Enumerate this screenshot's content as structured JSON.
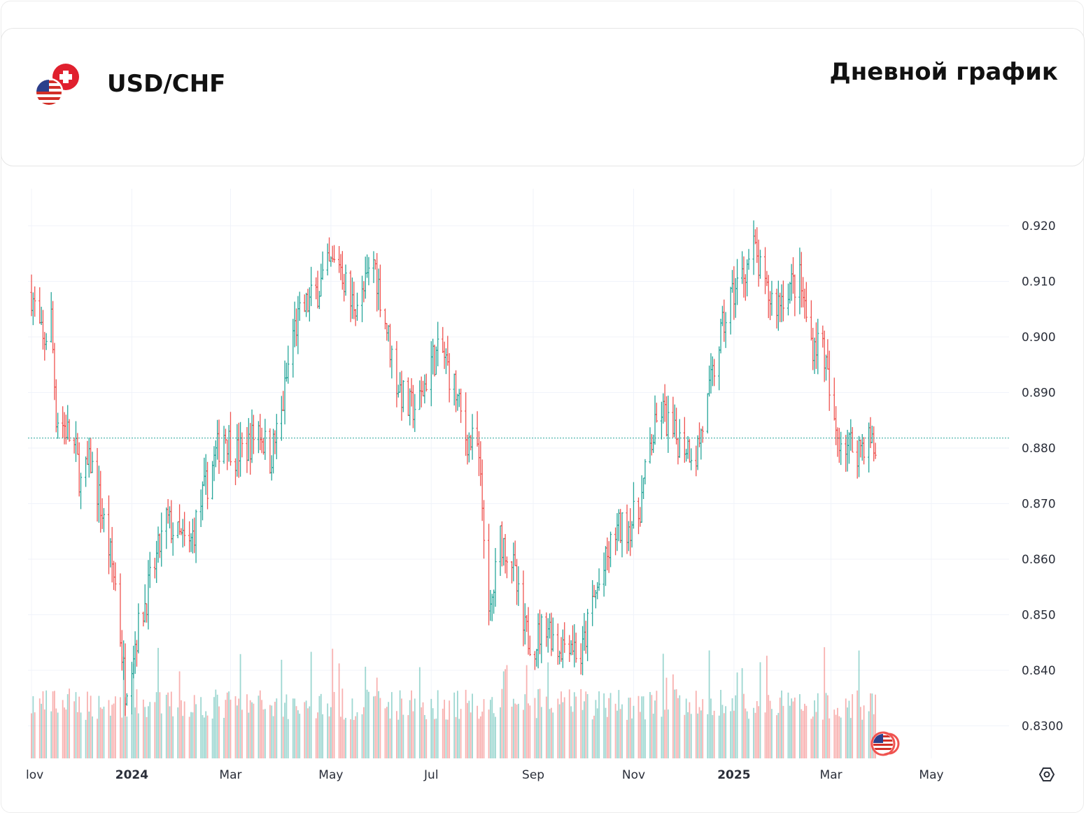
{
  "header": {
    "pair": "USD/CHF",
    "timeframe": "Дневной график"
  },
  "colors": {
    "up": "#26a69a",
    "down": "#ef5350",
    "grid": "#f0f3fa",
    "current_line": "#26a69a"
  },
  "icons": {
    "pair_flags": "usd-chf-flags-icon",
    "settings": "settings-icon",
    "event_marker": "us-flag-icon"
  },
  "chart_data": {
    "type": "bar",
    "title": "",
    "x_ticks": [
      "Nov",
      "2024",
      "Mar",
      "May",
      "Jul",
      "Sep",
      "Nov",
      "2025",
      "Mar",
      "May"
    ],
    "x_ticks_display": [
      "lov",
      "2024",
      "Mar",
      "May",
      "Jul",
      "Sep",
      "Nov",
      "2025",
      "Mar",
      "May"
    ],
    "y_ticks": [
      "0.920",
      "0.910",
      "0.900",
      "0.890",
      "0.880",
      "0.870",
      "0.860",
      "0.850",
      "0.840",
      "0.8300"
    ],
    "ylim": [
      0.8245,
      0.9265
    ],
    "current_price_line": 0.8818,
    "grid": true,
    "series_note": "daily OHLC bars with volume histogram",
    "price_path": [
      [
        "2023-11-01",
        0.908
      ],
      [
        "2023-11-08",
        0.8985
      ],
      [
        "2023-11-13",
        0.9035
      ],
      [
        "2023-11-16",
        0.886
      ],
      [
        "2023-11-22",
        0.8835
      ],
      [
        "2023-11-28",
        0.879
      ],
      [
        "2023-12-01",
        0.8735
      ],
      [
        "2023-12-07",
        0.8775
      ],
      [
        "2023-12-12",
        0.871
      ],
      [
        "2023-12-18",
        0.862
      ],
      [
        "2023-12-22",
        0.8555
      ],
      [
        "2023-12-28",
        0.837
      ],
      [
        "2024-01-02",
        0.844
      ],
      [
        "2024-01-08",
        0.851
      ],
      [
        "2024-01-16",
        0.86
      ],
      [
        "2024-01-22",
        0.867
      ],
      [
        "2024-01-29",
        0.864
      ],
      [
        "2024-02-05",
        0.862
      ],
      [
        "2024-02-12",
        0.87
      ],
      [
        "2024-02-19",
        0.877
      ],
      [
        "2024-02-26",
        0.883
      ],
      [
        "2024-03-04",
        0.879
      ],
      [
        "2024-03-11",
        0.88
      ],
      [
        "2024-03-18",
        0.884
      ],
      [
        "2024-03-25",
        0.878
      ],
      [
        "2024-04-01",
        0.886
      ],
      [
        "2024-04-08",
        0.901
      ],
      [
        "2024-04-15",
        0.905
      ],
      [
        "2024-04-22",
        0.908
      ],
      [
        "2024-04-29",
        0.912
      ],
      [
        "2024-05-06",
        0.914
      ],
      [
        "2024-05-13",
        0.906
      ],
      [
        "2024-05-20",
        0.907
      ],
      [
        "2024-05-27",
        0.914
      ],
      [
        "2024-06-03",
        0.903
      ],
      [
        "2024-06-10",
        0.892
      ],
      [
        "2024-06-17",
        0.887
      ],
      [
        "2024-06-24",
        0.888
      ],
      [
        "2024-07-01",
        0.896
      ],
      [
        "2024-07-08",
        0.897
      ],
      [
        "2024-07-15",
        0.891
      ],
      [
        "2024-07-22",
        0.882
      ],
      [
        "2024-07-29",
        0.88
      ],
      [
        "2024-08-02",
        0.866
      ],
      [
        "2024-08-05",
        0.848
      ],
      [
        "2024-08-12",
        0.864
      ],
      [
        "2024-08-19",
        0.86
      ],
      [
        "2024-08-26",
        0.847
      ],
      [
        "2024-09-02",
        0.845
      ],
      [
        "2024-09-09",
        0.849
      ],
      [
        "2024-09-16",
        0.844
      ],
      [
        "2024-09-23",
        0.846
      ],
      [
        "2024-09-30",
        0.842
      ],
      [
        "2024-10-07",
        0.852
      ],
      [
        "2024-10-14",
        0.858
      ],
      [
        "2024-10-21",
        0.865
      ],
      [
        "2024-10-28",
        0.866
      ],
      [
        "2024-11-04",
        0.868
      ],
      [
        "2024-11-11",
        0.88
      ],
      [
        "2024-11-18",
        0.887
      ],
      [
        "2024-11-25",
        0.882
      ],
      [
        "2024-12-02",
        0.881
      ],
      [
        "2024-12-09",
        0.879
      ],
      [
        "2024-12-16",
        0.888
      ],
      [
        "2024-12-23",
        0.899
      ],
      [
        "2024-12-30",
        0.907
      ],
      [
        "2025-01-06",
        0.911
      ],
      [
        "2025-01-13",
        0.916
      ],
      [
        "2025-01-20",
        0.908
      ],
      [
        "2025-01-27",
        0.906
      ],
      [
        "2025-02-03",
        0.909
      ],
      [
        "2025-02-10",
        0.91
      ],
      [
        "2025-02-17",
        0.899
      ],
      [
        "2025-02-24",
        0.899
      ],
      [
        "2025-03-03",
        0.883
      ],
      [
        "2025-03-10",
        0.881
      ],
      [
        "2025-03-17",
        0.88
      ],
      [
        "2025-03-24",
        0.882
      ],
      [
        "2025-03-28",
        0.879
      ]
    ]
  }
}
